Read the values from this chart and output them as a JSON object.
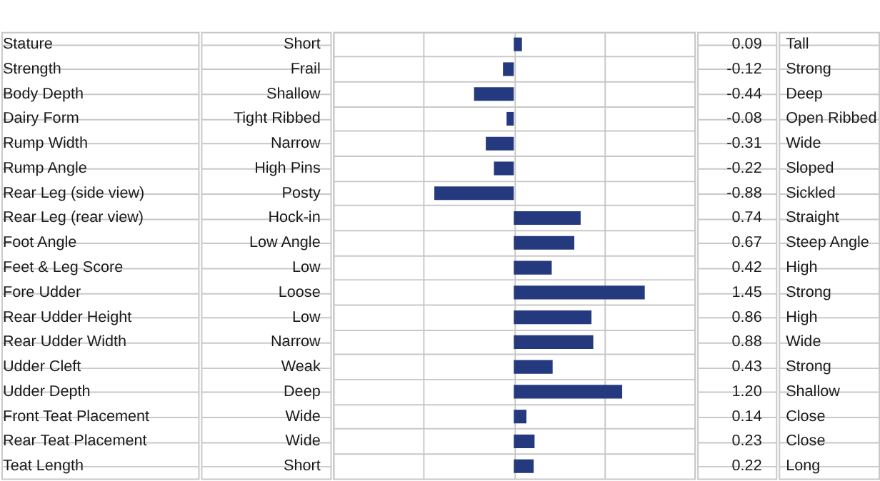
{
  "chart_data": {
    "type": "bar",
    "orientation": "horizontal",
    "grid": true,
    "tick_labels": "y",
    "categories": [
      "Stature",
      "Strength",
      "Body Depth",
      "Dairy Form",
      "Rump Width",
      "Rump Angle",
      "Rear Leg (side view)",
      "Rear Leg (rear view)",
      "Foot Angle",
      "Feet & Leg Score",
      "Fore Udder",
      "Rear Udder Height",
      "Rear Udder Width",
      "Udder Cleft",
      "Udder Depth",
      "Front Teat Placement",
      "Rear Teat Placement",
      "Teat Length"
    ],
    "values": [
      0.09,
      -0.12,
      -0.44,
      -0.08,
      -0.31,
      -0.22,
      -0.88,
      0.74,
      0.67,
      0.42,
      1.45,
      0.86,
      0.88,
      0.43,
      1.2,
      0.14,
      0.23,
      0.22
    ],
    "value_labels": [
      "0.09",
      "-0.12",
      "-0.44",
      "-0.08",
      "-0.31",
      "-0.22",
      "-0.88",
      "0.74",
      "0.67",
      "0.42",
      "1.45",
      "0.86",
      "0.88",
      "0.43",
      "1.20",
      "0.14",
      "0.23",
      "0.22"
    ],
    "color": "#253a7e",
    "annotations": [
      "Short",
      "Tall",
      "Frail",
      "Strong",
      "Shallow",
      "Deep",
      "Tight Ribbed",
      "Open Ribbed",
      "Narrow",
      "Wide",
      "High Pins",
      "Sloped",
      "Posty",
      "Sickled",
      "Hock-in",
      "Straight",
      "Low Angle",
      "Steep Angle",
      "Low",
      "High",
      "Loose",
      "Strong",
      "Low",
      "High",
      "Narrow",
      "Wide",
      "Weak",
      "Strong",
      "Deep",
      "Shallow",
      "Wide",
      "Close",
      "Wide",
      "Close",
      "Short",
      "Long"
    ]
  }
}
